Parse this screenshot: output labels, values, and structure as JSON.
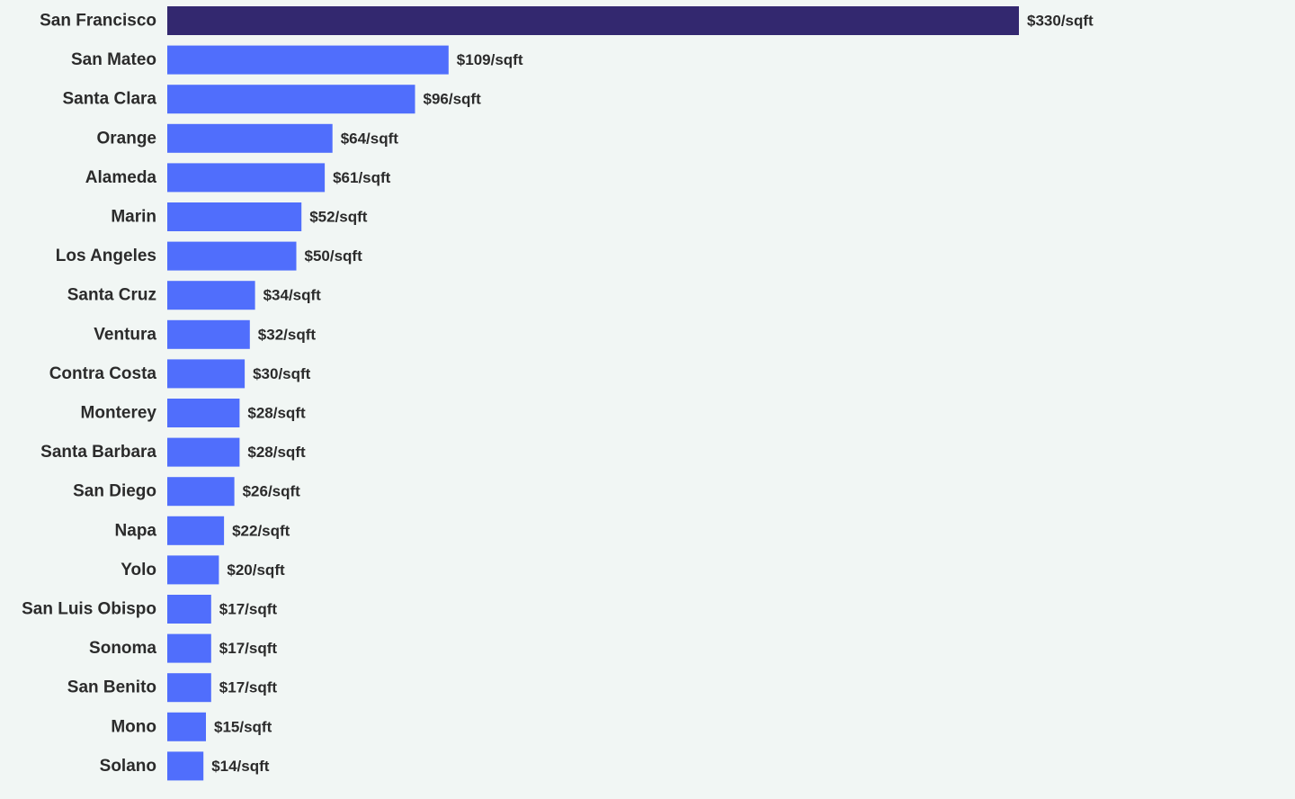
{
  "chart_data": {
    "type": "bar",
    "orientation": "horizontal",
    "title": "",
    "xlabel": "",
    "ylabel": "",
    "xlim": [
      0,
      330
    ],
    "grid": false,
    "legend": "none",
    "value_suffix": "/sqft",
    "value_prefix": "$",
    "colors": {
      "highlight": "#33286f",
      "default": "#506efc",
      "background": "#f1f6f4",
      "text": "#2b2b2b"
    },
    "highlight_index": 0,
    "categories": [
      "San Francisco",
      "San Mateo",
      "Santa Clara",
      "Orange",
      "Alameda",
      "Marin",
      "Los Angeles",
      "Santa Cruz",
      "Ventura",
      "Contra Costa",
      "Monterey",
      "Santa Barbara",
      "San Diego",
      "Napa",
      "Yolo",
      "San Luis Obispo",
      "Sonoma",
      "San Benito",
      "Mono",
      "Solano"
    ],
    "values": [
      330,
      109,
      96,
      64,
      61,
      52,
      50,
      34,
      32,
      30,
      28,
      28,
      26,
      22,
      20,
      17,
      17,
      17,
      15,
      14
    ],
    "value_labels": [
      "$330/sqft",
      "$109/sqft",
      "$96/sqft",
      "$64/sqft",
      "$61/sqft",
      "$52/sqft",
      "$50/sqft",
      "$34/sqft",
      "$32/sqft",
      "$30/sqft",
      "$28/sqft",
      "$28/sqft",
      "$26/sqft",
      "$22/sqft",
      "$20/sqft",
      "$17/sqft",
      "$17/sqft",
      "$17/sqft",
      "$15/sqft",
      "$14/sqft"
    ]
  }
}
